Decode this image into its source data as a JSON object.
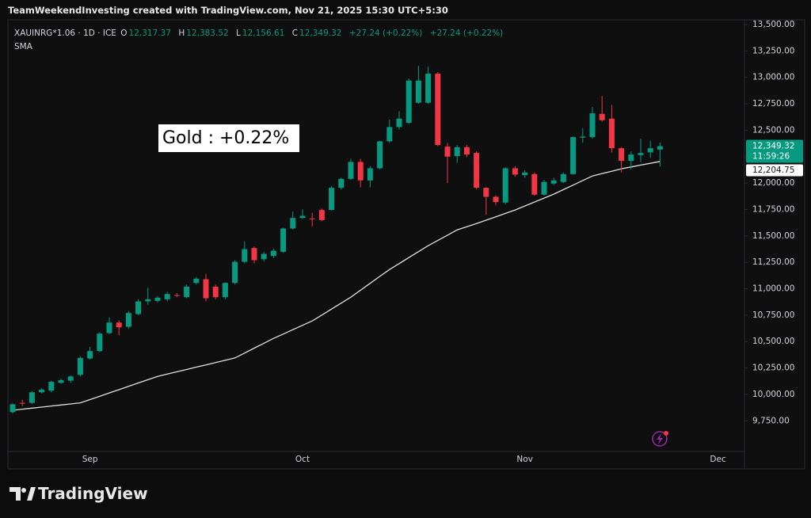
{
  "header": {
    "attribution": "TeamWeekendInvesting created with TradingView.com, Nov 21, 2025 15:30 UTC+5:30"
  },
  "chart_data": {
    "type": "candlestick",
    "symbol": "XAUINRG*1.06 · 1D · ICE",
    "ohlc_names": [
      "O",
      "H",
      "L",
      "C"
    ],
    "ohlc_labels": [
      "12,317.37",
      "12,383.52",
      "12,156.61",
      "12,349.32"
    ],
    "change": "+27.24 (+0.22%)",
    "annotation": "Gold : +0.22%",
    "categories": [
      null,
      null,
      null,
      null,
      null,
      null,
      null,
      null,
      "Sep",
      null,
      null,
      null,
      null,
      null,
      null,
      null,
      null,
      null,
      null,
      null,
      null,
      null,
      null,
      null,
      null,
      null,
      null,
      null,
      null,
      null,
      "Oct",
      null,
      null,
      null,
      null,
      null,
      null,
      null,
      null,
      null,
      null,
      null,
      null,
      null,
      null,
      null,
      null,
      null,
      null,
      null,
      null,
      null,
      null,
      "Nov",
      null,
      null,
      null,
      null,
      null,
      null,
      null,
      null,
      null,
      null,
      null,
      null,
      null,
      null,
      null,
      null,
      null,
      null,
      null,
      "Dec"
    ],
    "open": [
      9832,
      9920,
      9920,
      10020,
      10035,
      10110,
      10130,
      10185,
      10340,
      10410,
      10580,
      10680,
      10640,
      10760,
      10880,
      10885,
      10900,
      10940,
      10920,
      11055,
      11090,
      11020,
      10920,
      11055,
      11255,
      11385,
      11280,
      11310,
      11350,
      11570,
      11670,
      11665,
      11745,
      11745,
      11955,
      12040,
      12200,
      12025,
      12140,
      12395,
      12530,
      12570,
      12760,
      12760,
      13035,
      12345,
      12255,
      12340,
      12285,
      11955,
      11870,
      11815,
      12140,
      12075,
      12085,
      11890,
      11995,
      12010,
      12085,
      12430,
      12435,
      12655,
      12610,
      12330,
      12210,
      12265,
      12290,
      12317.37,
      null,
      null,
      null,
      null,
      null,
      null
    ],
    "high": [
      9915,
      9950,
      10030,
      10060,
      10130,
      10150,
      10180,
      10360,
      10450,
      10590,
      10730,
      10700,
      10790,
      10900,
      11010,
      10930,
      10970,
      10960,
      11040,
      11110,
      11140,
      11040,
      11060,
      11270,
      11450,
      11400,
      11350,
      11380,
      11580,
      11730,
      11750,
      11720,
      11760,
      11970,
      12050,
      12230,
      12230,
      12160,
      12400,
      12600,
      12680,
      12990,
      13110,
      13100,
      13050,
      12380,
      12360,
      12360,
      12300,
      11960,
      11885,
      12150,
      12160,
      12120,
      12100,
      12030,
      12050,
      12100,
      12440,
      12520,
      12720,
      12825,
      12740,
      12340,
      12300,
      12420,
      12400,
      12383.52,
      null,
      null,
      null,
      null,
      null,
      null
    ],
    "low": [
      9820,
      9890,
      9910,
      10010,
      10020,
      10100,
      10110,
      10170,
      10330,
      10400,
      10570,
      10560,
      10620,
      10750,
      10850,
      10870,
      10880,
      10920,
      10910,
      11040,
      10880,
      10900,
      10900,
      11040,
      11240,
      11240,
      11260,
      11290,
      11340,
      11560,
      11660,
      11590,
      11640,
      11740,
      11940,
      12030,
      11960,
      11960,
      12130,
      12380,
      12510,
      12560,
      12750,
      12750,
      12350,
      12000,
      12190,
      12245,
      11940,
      11700,
      11790,
      11800,
      12060,
      12050,
      11880,
      11880,
      11980,
      12000,
      12080,
      12380,
      12420,
      12580,
      12290,
      12100,
      12130,
      12200,
      12240,
      12156.61,
      null,
      null,
      null,
      null,
      null,
      null
    ],
    "close": [
      9907,
      9918,
      10020,
      10045,
      10120,
      10135,
      10170,
      10345,
      10410,
      10575,
      10680,
      10635,
      10770,
      10880,
      10900,
      10915,
      10950,
      10935,
      11020,
      11095,
      10910,
      10920,
      11055,
      11255,
      11375,
      11270,
      11330,
      11360,
      11570,
      11670,
      11690,
      11660,
      11650,
      11955,
      12040,
      12200,
      12025,
      12140,
      12395,
      12530,
      12610,
      12970,
      12970,
      13035,
      12360,
      12250,
      12340,
      12270,
      11955,
      11870,
      11820,
      12140,
      12080,
      12100,
      11890,
      12010,
      12025,
      12085,
      12435,
      12440,
      12660,
      12595,
      12330,
      12210,
      12270,
      12285,
      12330,
      12349.32,
      null,
      null,
      null,
      null,
      null,
      null
    ],
    "up_color": "#089981",
    "down_color": "#f23645",
    "sma": {
      "name": "SMA",
      "color": "#e0e0e0",
      "values": [
        9850,
        9860,
        9870,
        9880,
        9890,
        9900,
        9910,
        9920,
        9951,
        9982,
        10014,
        10045,
        10076,
        10108,
        10139,
        10170,
        10192,
        10214,
        10236,
        10258,
        10279,
        10301,
        10323,
        10345,
        10391,
        10438,
        10484,
        10530,
        10571,
        10613,
        10654,
        10695,
        10751,
        10808,
        10864,
        10920,
        10986,
        11051,
        11117,
        11182,
        11238,
        11295,
        11351,
        11407,
        11457,
        11507,
        11557,
        11587,
        11617,
        11649,
        11681,
        11713,
        11745,
        11783,
        11820,
        11858,
        11895,
        11938,
        11981,
        12024,
        12067,
        12090,
        12112,
        12135,
        12152,
        12170,
        12187,
        12204.75,
        null,
        null,
        null,
        null,
        null,
        null
      ]
    },
    "last_price_label": "12,349.32",
    "countdown": "11:59:26",
    "sma_last_label": "12,204.75",
    "ylim": [
      9460,
      13545
    ],
    "yticks": [
      {
        "value": 9750,
        "label": "9,750.00"
      },
      {
        "value": 10000,
        "label": "10,000.00"
      },
      {
        "value": 10250,
        "label": "10,250.00"
      },
      {
        "value": 10500,
        "label": "10,500.00"
      },
      {
        "value": 10750,
        "label": "10,750.00"
      },
      {
        "value": 11000,
        "label": "11,000.00"
      },
      {
        "value": 11250,
        "label": "11,250.00"
      },
      {
        "value": 11500,
        "label": "11,500.00"
      },
      {
        "value": 11750,
        "label": "11,750.00"
      },
      {
        "value": 12000,
        "label": "12,000.00"
      },
      {
        "value": 12250,
        "label": "12,250.00"
      },
      {
        "value": 12500,
        "label": "12,500.00"
      },
      {
        "value": 12750,
        "label": "12,750.00"
      },
      {
        "value": 13000,
        "label": "13,000.00"
      },
      {
        "value": 13250,
        "label": "13,250.00"
      },
      {
        "value": 13500,
        "label": "13,500.00"
      }
    ],
    "grid": false
  },
  "branding": "TradingView"
}
